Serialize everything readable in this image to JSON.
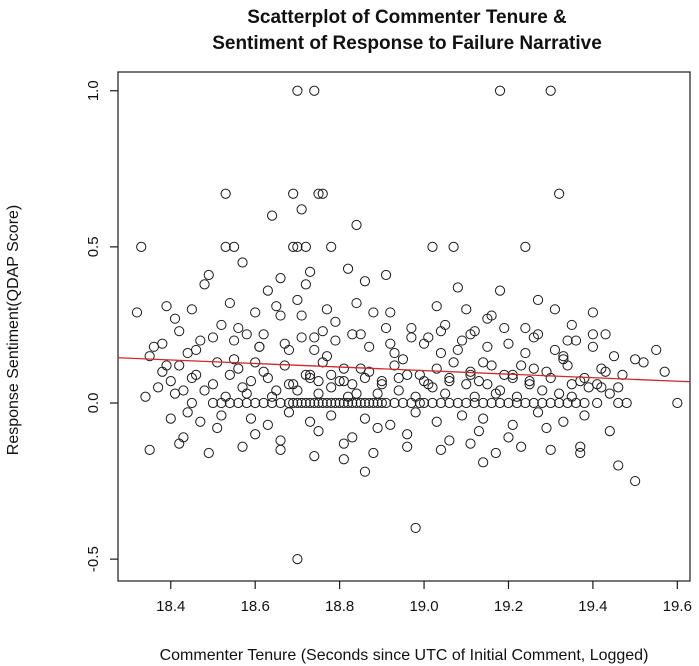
{
  "chart_data": {
    "type": "scatter",
    "title_lines": [
      "Scatterplot of Commenter Tenure &",
      "Sentiment of Response to Failure Narrative"
    ],
    "xlabel": "Commenter Tenure (Seconds since UTC of Initial Comment, Logged)",
    "ylabel": "Response Sentiment(QDAP Score)",
    "xlim": [
      18.275,
      19.63
    ],
    "ylim": [
      -0.57,
      1.06
    ],
    "x_ticks": [
      18.4,
      18.6,
      18.8,
      19.0,
      19.2,
      19.4,
      19.6
    ],
    "x_tick_labels": [
      "18.4",
      "18.6",
      "18.8",
      "19.0",
      "19.2",
      "19.4",
      "19.6"
    ],
    "y_ticks": [
      -0.5,
      0.0,
      0.5,
      1.0
    ],
    "y_tick_labels": [
      "-0.5",
      "0.0",
      "0.5",
      "1.0"
    ],
    "grid": false,
    "series": [
      {
        "marker": "open-circle",
        "x": [
          18.7,
          18.74,
          19.18,
          19.3,
          18.53,
          18.69,
          18.75,
          18.76,
          19.32,
          18.71,
          18.64,
          18.84,
          18.33,
          18.53,
          18.55,
          18.69,
          18.7,
          18.72,
          18.78,
          19.02,
          19.07,
          19.24,
          18.57,
          18.73,
          18.82,
          18.72,
          18.66,
          18.63,
          18.86,
          18.91,
          18.49,
          18.48,
          19.08,
          19.18,
          19.35,
          18.32,
          18.36,
          18.41,
          18.47,
          18.52,
          18.58,
          18.61,
          18.66,
          18.7,
          18.74,
          18.79,
          18.83,
          18.88,
          18.92,
          18.97,
          19.01,
          19.05,
          19.09,
          19.12,
          19.15,
          19.2,
          19.24,
          19.27,
          19.31,
          19.36,
          19.4,
          19.45,
          19.5,
          19.55,
          18.35,
          18.39,
          18.44,
          18.55,
          18.6,
          18.68,
          18.77,
          18.85,
          18.95,
          19.04,
          19.14,
          19.23,
          19.33,
          19.42,
          19.52,
          18.38,
          18.42,
          18.46,
          18.51,
          18.56,
          18.62,
          18.67,
          18.72,
          18.76,
          18.81,
          18.87,
          18.93,
          18.99,
          19.03,
          19.07,
          19.11,
          19.16,
          19.21,
          19.26,
          19.29,
          19.34,
          19.38,
          19.43,
          19.47,
          18.4,
          18.45,
          18.5,
          18.54,
          18.59,
          18.63,
          18.69,
          18.73,
          18.8,
          18.86,
          18.9,
          18.96,
          19.0,
          19.06,
          19.1,
          19.13,
          19.19,
          19.25,
          19.3,
          19.37,
          19.41,
          19.46,
          18.37,
          18.43,
          18.57,
          18.65,
          18.78,
          18.84,
          18.94,
          19.02,
          19.17,
          19.28,
          19.39,
          19.44,
          18.34,
          18.41,
          18.48,
          18.53,
          18.58,
          18.64,
          18.7,
          18.75,
          18.82,
          18.89,
          18.98,
          19.05,
          19.12,
          19.18,
          19.22,
          19.32,
          19.35,
          19.4,
          18.38,
          18.46,
          18.55,
          18.61,
          18.67,
          18.74,
          18.79,
          18.87,
          18.93,
          19.0,
          19.08,
          19.15,
          19.24,
          19.33,
          19.43,
          18.42,
          18.5,
          18.56,
          18.62,
          18.71,
          18.76,
          18.85,
          18.91,
          18.97,
          19.04,
          19.11,
          19.19,
          19.26,
          19.34,
          19.41,
          18.69,
          18.7,
          18.71,
          18.72,
          18.73,
          18.74,
          18.75,
          18.76,
          18.77,
          18.78,
          18.79,
          18.8,
          18.81,
          18.82,
          18.83,
          18.84,
          18.85,
          18.86,
          18.87,
          18.88,
          18.89,
          18.9,
          18.91,
          18.93,
          18.95,
          18.97,
          18.99,
          19.0,
          19.02,
          19.04,
          19.06,
          19.08,
          19.1,
          19.12,
          19.14,
          19.16,
          19.18,
          19.2,
          19.22,
          19.24,
          19.26,
          19.28,
          19.3,
          19.32,
          19.34,
          19.36,
          19.38,
          18.5,
          18.52,
          18.54,
          18.56,
          18.58,
          18.6,
          18.62,
          18.64,
          18.66,
          18.68,
          18.45,
          19.46,
          19.48,
          18.4,
          18.44,
          18.47,
          18.52,
          18.59,
          18.63,
          18.68,
          18.73,
          18.78,
          18.86,
          18.92,
          18.98,
          19.03,
          19.09,
          19.14,
          19.21,
          19.27,
          19.33,
          19.38,
          19.44,
          18.43,
          18.51,
          18.6,
          18.66,
          18.75,
          18.83,
          18.89,
          18.96,
          19.06,
          19.13,
          19.2,
          19.29,
          19.37,
          18.35,
          18.42,
          18.49,
          18.57,
          18.66,
          18.74,
          18.81,
          18.88,
          18.96,
          19.04,
          19.11,
          19.17,
          19.23,
          19.3,
          19.37,
          19.46,
          18.81,
          18.86,
          18.98,
          19.14,
          19.5,
          18.7,
          18.81,
          18.73,
          18.68,
          18.75,
          18.78,
          18.83,
          18.9,
          18.94,
          19.01,
          19.06,
          19.11,
          19.15,
          19.21,
          19.25,
          19.35,
          19.42,
          18.39,
          18.45,
          18.54,
          18.6,
          18.65,
          18.71,
          18.77,
          18.84,
          18.92,
          19.03,
          19.1,
          19.16,
          19.27,
          19.31,
          19.4,
          19.57,
          19.6
        ],
        "y": [
          1.0,
          1.0,
          1.0,
          1.0,
          0.67,
          0.67,
          0.67,
          0.67,
          0.67,
          0.62,
          0.6,
          0.57,
          0.5,
          0.5,
          0.5,
          0.5,
          0.5,
          0.5,
          0.5,
          0.5,
          0.5,
          0.5,
          0.45,
          0.42,
          0.43,
          0.38,
          0.4,
          0.36,
          0.39,
          0.41,
          0.41,
          0.38,
          0.37,
          0.36,
          0.25,
          0.29,
          0.18,
          0.27,
          0.2,
          0.25,
          0.22,
          0.18,
          0.28,
          0.33,
          0.21,
          0.26,
          0.22,
          0.29,
          0.19,
          0.24,
          0.21,
          0.25,
          0.2,
          0.23,
          0.27,
          0.19,
          0.24,
          0.22,
          0.17,
          0.2,
          0.22,
          0.15,
          0.14,
          0.17,
          0.15,
          0.12,
          0.16,
          0.14,
          0.13,
          0.17,
          0.15,
          0.11,
          0.14,
          0.16,
          0.13,
          0.12,
          0.14,
          0.11,
          0.13,
          0.1,
          0.12,
          0.09,
          0.13,
          0.11,
          0.1,
          0.12,
          0.09,
          0.13,
          0.11,
          0.1,
          0.12,
          0.09,
          0.11,
          0.13,
          0.1,
          0.12,
          0.09,
          0.11,
          0.1,
          0.12,
          0.08,
          0.1,
          0.09,
          0.07,
          0.08,
          0.06,
          0.09,
          0.07,
          0.08,
          0.06,
          0.09,
          0.07,
          0.08,
          0.06,
          0.09,
          0.07,
          0.08,
          0.06,
          0.07,
          0.09,
          0.06,
          0.08,
          0.07,
          0.06,
          0.05,
          0.05,
          0.04,
          0.05,
          0.04,
          0.05,
          0.03,
          0.04,
          0.05,
          0.03,
          0.04,
          0.05,
          0.03,
          0.02,
          0.03,
          0.04,
          0.02,
          0.03,
          0.02,
          0.04,
          0.03,
          0.02,
          0.03,
          0.02,
          0.03,
          0.02,
          0.04,
          0.02,
          0.03,
          0.02,
          0.18,
          0.19,
          0.17,
          0.2,
          0.18,
          0.19,
          0.17,
          0.2,
          0.18,
          0.16,
          0.19,
          0.17,
          0.18,
          0.16,
          0.15,
          0.22,
          0.23,
          0.21,
          0.24,
          0.22,
          0.21,
          0.23,
          0.22,
          0.24,
          0.21,
          0.23,
          0.22,
          0.24,
          0.21,
          0.2,
          0.0,
          0.0,
          0.0,
          0.0,
          0.0,
          0.0,
          0.0,
          0.0,
          0.0,
          0.0,
          0.0,
          0.0,
          0.0,
          0.0,
          0.0,
          0.0,
          0.0,
          0.0,
          0.0,
          0.0,
          0.0,
          0.0,
          0.0,
          0.0,
          0.0,
          0.0,
          0.0,
          0.0,
          0.0,
          0.0,
          0.0,
          0.0,
          0.0,
          0.0,
          0.0,
          0.0,
          0.0,
          0.0,
          0.0,
          0.0,
          0.0,
          0.0,
          0.0,
          0.0,
          0.0,
          0.0,
          0.0,
          0.0,
          0.0,
          0.0,
          0.0,
          0.0,
          0.0,
          0.0,
          0.0,
          0.0,
          0.0,
          0.0,
          0.0,
          0.0,
          0.0,
          -0.05,
          -0.03,
          -0.06,
          -0.04,
          -0.05,
          -0.07,
          -0.03,
          -0.06,
          -0.04,
          -0.05,
          -0.07,
          -0.03,
          -0.06,
          -0.04,
          -0.05,
          -0.07,
          -0.03,
          -0.06,
          -0.04,
          -0.09,
          -0.11,
          -0.08,
          -0.1,
          -0.12,
          -0.09,
          -0.11,
          -0.08,
          -0.1,
          -0.12,
          -0.09,
          -0.11,
          -0.08,
          -0.14,
          -0.15,
          -0.13,
          -0.16,
          -0.14,
          -0.15,
          -0.17,
          -0.13,
          -0.16,
          -0.14,
          -0.15,
          -0.13,
          -0.16,
          -0.14,
          -0.15,
          -0.16,
          -0.2,
          -0.18,
          -0.22,
          -0.4,
          -0.19,
          -0.25,
          -0.5,
          0.07,
          0.08,
          0.06,
          0.07,
          0.09,
          0.06,
          0.07,
          0.08,
          0.06,
          0.07,
          0.09,
          0.06,
          0.08,
          0.07,
          0.06,
          0.05,
          0.31,
          0.3,
          0.32,
          0.29,
          0.31,
          0.28,
          0.3,
          0.32,
          0.29,
          0.31,
          0.3,
          0.28,
          0.33,
          0.3,
          0.29,
          0.1,
          0.0
        ]
      }
    ],
    "regression_line": {
      "color": "#d62728",
      "x": [
        18.275,
        19.63
      ],
      "y": [
        0.145,
        0.068
      ]
    },
    "colors": {
      "points": "#1a1a1a",
      "axes": "#1a1a1a",
      "background": "#ffffff"
    }
  }
}
